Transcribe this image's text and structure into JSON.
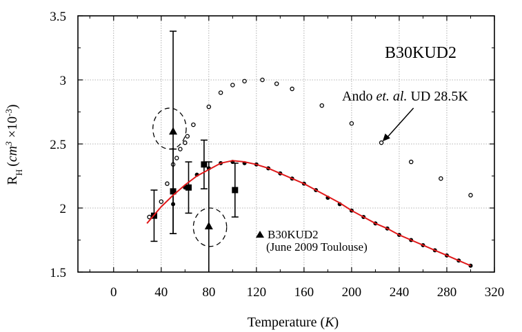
{
  "chart_data": {
    "type": "scatter",
    "title": "B30KUD2",
    "xlabel": {
      "main": "Temperature (",
      "unit": "K",
      "close": ")"
    },
    "ylabel": {
      "main": "R",
      "sub": "H",
      "unit": "cm",
      "unit_exp": "3",
      "mult": " ×10",
      "mult_exp": "-3"
    },
    "xlim": [
      -30,
      320
    ],
    "ylim": [
      1.5,
      3.5
    ],
    "xticks": [
      0,
      40,
      80,
      120,
      160,
      200,
      240,
      280,
      320
    ],
    "yticks": [
      1.5,
      2,
      2.5,
      3,
      3.5
    ],
    "ytick_labels": [
      "1.5",
      "2",
      "2.5",
      "3",
      "3.5"
    ],
    "grid": "dotted",
    "annotation": {
      "prefix": "Ando ",
      "italic": "et. al.",
      "suffix": " UD 28.5K",
      "arrow_to": [
        226,
        2.52
      ],
      "arrow_from": [
        252,
        2.78
      ]
    },
    "legend": {
      "placement": "center",
      "symbol": "triangle",
      "line1": "B30KUD2",
      "line2": "(June 2009 Toulouse)"
    },
    "series": [
      {
        "marker": "open-circle",
        "x": [
          30,
          40,
          45,
          50,
          53,
          56,
          60,
          62,
          67,
          80,
          90,
          100,
          110,
          125,
          137,
          150,
          175,
          200,
          225,
          250,
          275,
          300
        ],
        "y": [
          1.93,
          2.05,
          2.19,
          2.34,
          2.39,
          2.46,
          2.51,
          2.56,
          2.65,
          2.79,
          2.9,
          2.96,
          2.99,
          3.0,
          2.97,
          2.93,
          2.8,
          2.66,
          2.51,
          2.36,
          2.23,
          2.1
        ]
      },
      {
        "marker": "filled-circle",
        "x": [
          50,
          60,
          70,
          80,
          90,
          100,
          110,
          120,
          130,
          140,
          150,
          160,
          170,
          180,
          190,
          200,
          210,
          220,
          230,
          240,
          250,
          260,
          270,
          280,
          290,
          300
        ],
        "y": [
          2.03,
          2.16,
          2.26,
          2.31,
          2.35,
          2.36,
          2.35,
          2.34,
          2.31,
          2.27,
          2.23,
          2.19,
          2.14,
          2.08,
          2.03,
          1.98,
          1.93,
          1.88,
          1.84,
          1.79,
          1.75,
          1.71,
          1.67,
          1.63,
          1.59,
          1.55
        ]
      },
      {
        "marker": "filled-square",
        "x": [
          34,
          50,
          63,
          76,
          102
        ],
        "y": [
          1.94,
          2.13,
          2.16,
          2.34,
          2.14
        ],
        "err": [
          0.2,
          0.33,
          0.2,
          0.19,
          0.21
        ]
      },
      {
        "marker": "filled-triangle",
        "x": [
          50,
          80
        ],
        "y": [
          2.6,
          1.86
        ],
        "err_low": [
          0.8,
          0.5
        ],
        "err_high": [
          0.78,
          0.5
        ]
      },
      {
        "type": "line",
        "color": "#e0191a",
        "x": [
          28,
          40,
          50,
          60,
          70,
          80,
          90,
          100,
          110,
          120,
          130,
          140,
          150,
          160,
          170,
          180,
          190,
          200,
          210,
          220,
          230,
          240,
          250,
          260,
          270,
          280,
          290,
          300
        ],
        "y": [
          1.88,
          2.01,
          2.1,
          2.18,
          2.25,
          2.3,
          2.35,
          2.37,
          2.36,
          2.34,
          2.31,
          2.27,
          2.23,
          2.19,
          2.14,
          2.09,
          2.04,
          1.98,
          1.93,
          1.88,
          1.84,
          1.79,
          1.75,
          1.71,
          1.67,
          1.63,
          1.59,
          1.55
        ]
      }
    ],
    "dashed_ellipses": [
      {
        "cx": 47,
        "cy": 2.62,
        "rx": 14,
        "ry": 0.16
      },
      {
        "cx": 81,
        "cy": 1.85,
        "rx": 14,
        "ry": 0.15
      }
    ]
  }
}
